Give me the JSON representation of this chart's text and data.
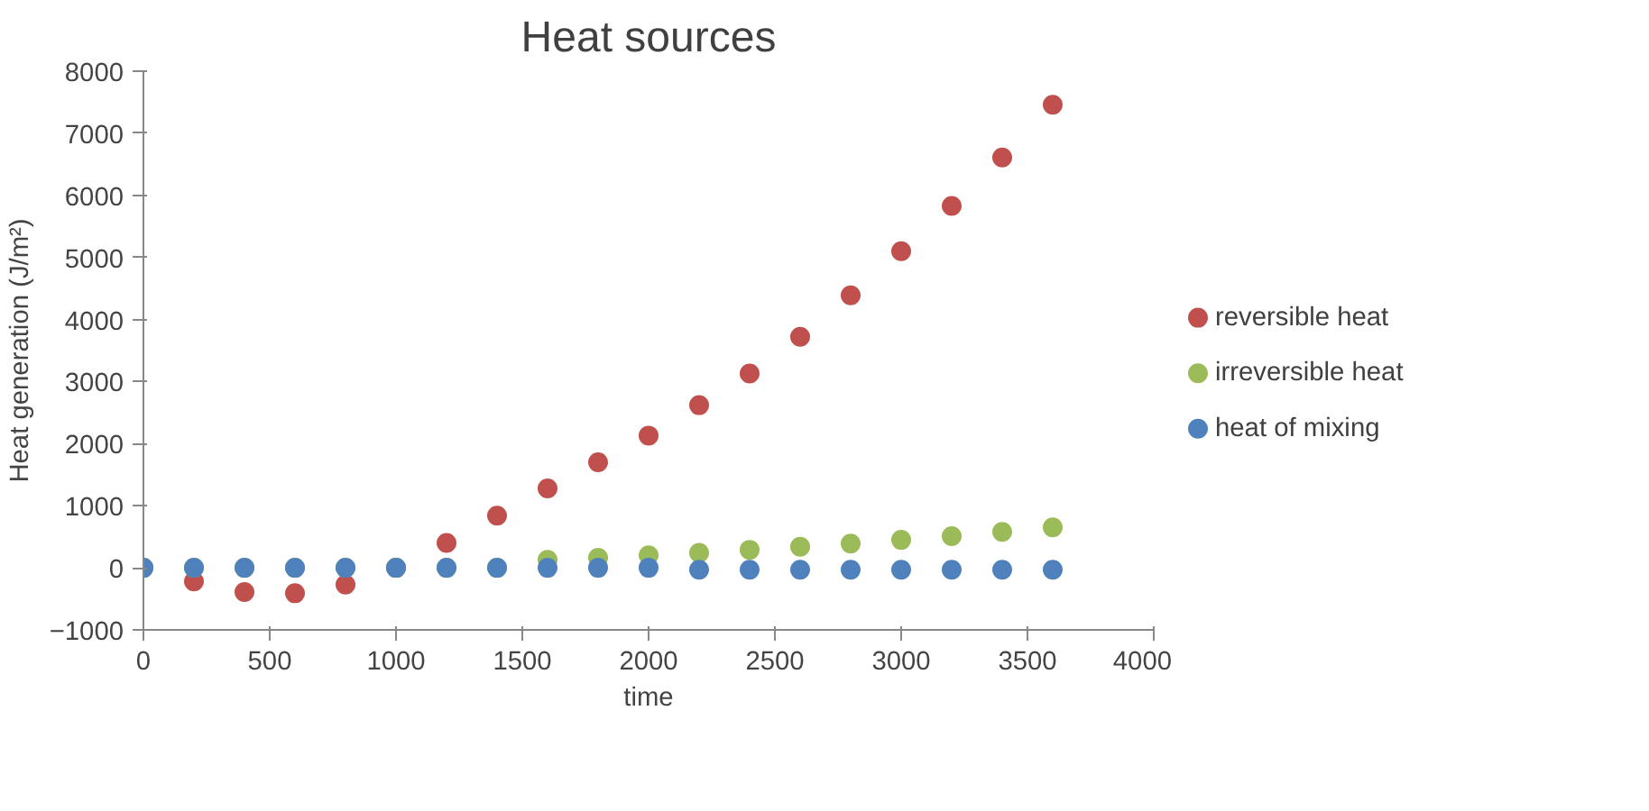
{
  "chart_data": {
    "type": "scatter",
    "title": "Heat sources",
    "xlabel": "time",
    "ylabel": "Heat generation (J/m²)",
    "x": [
      0,
      200,
      400,
      600,
      800,
      1000,
      1200,
      1400,
      1600,
      1800,
      2000,
      2200,
      2400,
      2600,
      2800,
      3000,
      3200,
      3400,
      3600
    ],
    "series": [
      {
        "name": "reversible heat",
        "color": "#c0504d",
        "values": [
          null,
          -220,
          -390,
          -410,
          -270,
          null,
          400,
          840,
          1280,
          1700,
          2130,
          2620,
          3130,
          3720,
          4390,
          5100,
          5830,
          6610,
          7460
        ]
      },
      {
        "name": "irreversible heat",
        "color": "#9bbb59",
        "values": [
          null,
          null,
          null,
          null,
          null,
          null,
          null,
          null,
          130,
          160,
          200,
          240,
          290,
          340,
          390,
          450,
          510,
          580,
          650
        ]
      },
      {
        "name": "heat of mixing",
        "color": "#4f81bd",
        "values": [
          0,
          0,
          0,
          0,
          0,
          0,
          0,
          0,
          0,
          0,
          0,
          -30,
          -30,
          -30,
          -30,
          -30,
          -30,
          -30,
          -30
        ]
      }
    ],
    "xlim": [
      0,
      4000
    ],
    "xticks": [
      0,
      500,
      1000,
      1500,
      2000,
      2500,
      3000,
      3500,
      4000
    ],
    "ylim": [
      -1000,
      8000
    ],
    "yticks": [
      -1000,
      0,
      1000,
      2000,
      3000,
      4000,
      5000,
      6000,
      7000,
      8000
    ],
    "legend": "right",
    "marker": "circle"
  }
}
